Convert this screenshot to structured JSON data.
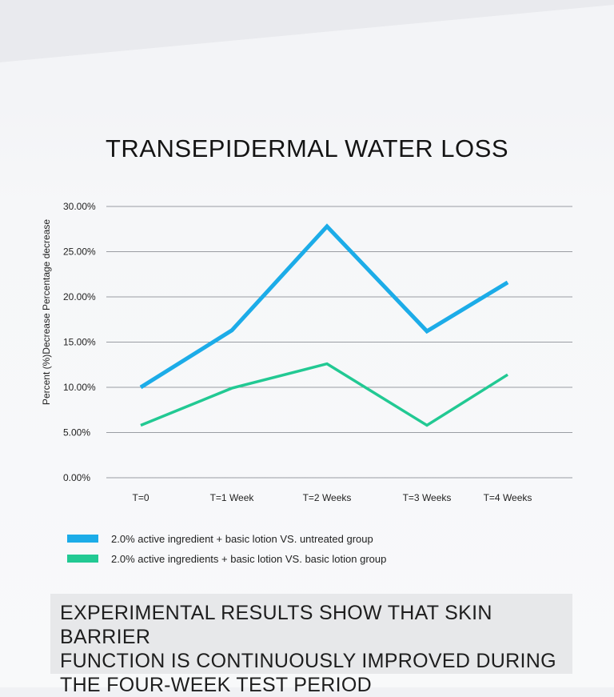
{
  "chart_data": {
    "type": "line",
    "title": "TRANSEPIDERMAL WATER LOSS",
    "ylabel": "Percent (%)Decrease Percentage decrease",
    "xlabel": "",
    "categories": [
      "T=0",
      "T=1 Week",
      "T=2 Weeks",
      "T=3 Weeks",
      "T=4 Weeks"
    ],
    "y_ticks": [
      "0.00%",
      "5.00%",
      "10.00%",
      "15.00%",
      "20.00%",
      "25.00%",
      "30.00%"
    ],
    "ylim": [
      0,
      30
    ],
    "grid": true,
    "legend_position": "bottom",
    "series": [
      {
        "name": "2.0% active ingredient + basic lotion VS. untreated group",
        "color": "#1cace8",
        "values": [
          10.0,
          16.3,
          27.8,
          16.2,
          21.6
        ]
      },
      {
        "name": "2.0% active ingredients + basic lotion VS. basic lotion group",
        "color": "#22c993",
        "values": [
          5.8,
          9.9,
          12.6,
          5.8,
          11.4
        ]
      }
    ]
  },
  "caption": "EXPERIMENTAL RESULTS SHOW THAT SKIN BARRIER\nFUNCTION IS CONTINUOUSLY IMPROVED DURING\nTHE FOUR-WEEK TEST PERIOD"
}
